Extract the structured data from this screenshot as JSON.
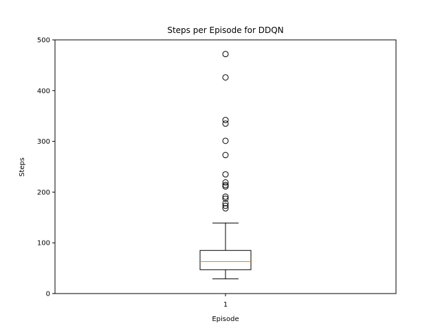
{
  "chart_data": {
    "type": "box",
    "title": "Steps per Episode for DDQN",
    "xlabel": "Episode",
    "ylabel": "Steps",
    "categories": [
      "1"
    ],
    "ylim": [
      0,
      500
    ],
    "yticks": [
      0,
      100,
      200,
      300,
      400,
      500
    ],
    "boxes": [
      {
        "category": "1",
        "whisker_low": 29,
        "q1": 47,
        "median": 63,
        "q3": 85,
        "whisker_high": 139,
        "outliers": [
          168,
          173,
          178,
          187,
          191,
          211,
          214,
          219,
          235,
          273,
          301,
          335,
          342,
          426,
          472
        ]
      }
    ],
    "colors": {
      "box": "#000000",
      "median": "#ff7f0e",
      "outlier": "#000000"
    }
  }
}
